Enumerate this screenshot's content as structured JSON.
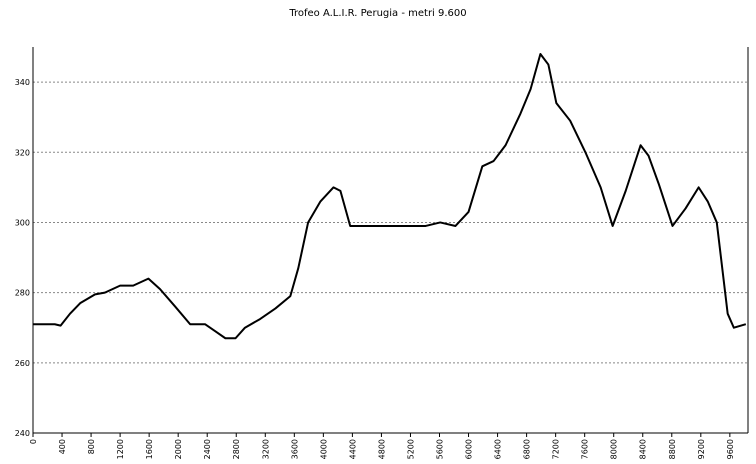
{
  "chart_data": {
    "type": "line",
    "title": "Trofeo A.L.I.R. Perugia - metri 9.600",
    "x": [
      0,
      300,
      380,
      510,
      650,
      855,
      990,
      1200,
      1380,
      1590,
      1750,
      1960,
      2165,
      2370,
      2510,
      2650,
      2790,
      2920,
      3130,
      3340,
      3545,
      3655,
      3790,
      3960,
      4140,
      4235,
      4370,
      4510,
      4790,
      5060,
      5410,
      5610,
      5820,
      6000,
      6190,
      6345,
      6510,
      6715,
      6855,
      6990,
      7100,
      7210,
      7400,
      7610,
      7820,
      7985,
      8165,
      8370,
      8480,
      8620,
      8810,
      8990,
      9170,
      9295,
      9420,
      9570,
      9655,
      9820
    ],
    "series": [
      {
        "color": "#000000",
        "values": [
          271,
          271,
          270.6,
          274,
          277,
          279.5,
          280,
          282,
          282,
          284,
          281,
          276,
          271,
          271,
          269,
          267,
          267,
          270,
          272.5,
          275.5,
          279,
          287,
          300,
          306,
          310,
          309,
          299,
          299,
          299,
          299,
          299,
          300,
          299,
          303,
          316,
          317.5,
          322,
          331,
          338,
          348,
          345,
          334,
          329,
          320,
          310,
          299,
          309,
          322,
          319,
          311,
          299,
          304,
          310,
          306,
          300,
          274,
          270,
          271
        ]
      }
    ],
    "xlim": [
      0,
      9850
    ],
    "ylim": [
      240,
      350
    ],
    "xticks": [
      0,
      400,
      800,
      1200,
      1600,
      2000,
      2400,
      2800,
      3200,
      3600,
      4000,
      4400,
      4800,
      5200,
      5600,
      6000,
      6400,
      6800,
      7200,
      7600,
      8000,
      8400,
      8800,
      9200,
      9600
    ],
    "yticks": [
      240,
      260,
      280,
      300,
      320,
      340
    ],
    "grid": true
  }
}
